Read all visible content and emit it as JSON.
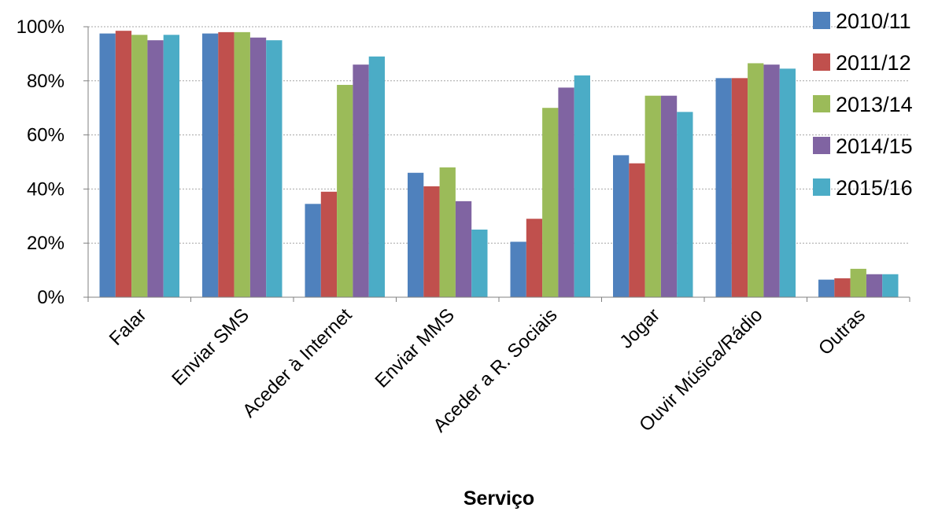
{
  "chart_data": {
    "type": "bar",
    "xlabel": "Serviço",
    "ylabel": "",
    "ylim": [
      0,
      100
    ],
    "yticks": [
      0,
      20,
      40,
      60,
      80,
      100
    ],
    "ytick_labels": [
      "0%",
      "20%",
      "40%",
      "60%",
      "80%",
      "100%"
    ],
    "grid": "horizontal, dotted",
    "legend_position": "right",
    "categories": [
      "Falar",
      "Enviar SMS",
      "Aceder à Internet",
      "Enviar MMS",
      "Aceder a R. Sociais",
      "Jogar",
      "Ouvir Música/Rádio",
      "Outras"
    ],
    "series": [
      {
        "name": "2010/11",
        "color": "#4F81BD",
        "values": [
          97.5,
          97.5,
          34.5,
          46,
          20.5,
          52.5,
          81,
          6.5
        ]
      },
      {
        "name": "2011/12",
        "color": "#C0504D",
        "values": [
          98.5,
          98,
          39,
          41,
          29,
          49.5,
          81,
          7
        ]
      },
      {
        "name": "2013/14",
        "color": "#9BBB59",
        "values": [
          97,
          98,
          78.5,
          48,
          70,
          74.5,
          86.5,
          10.5
        ]
      },
      {
        "name": "2014/15",
        "color": "#8064A2",
        "values": [
          95,
          96,
          86,
          35.5,
          77.5,
          74.5,
          86,
          8.5
        ]
      },
      {
        "name": "2015/16",
        "color": "#4BACC6",
        "values": [
          97,
          95,
          89,
          25,
          82,
          68.5,
          84.5,
          8.5
        ]
      }
    ]
  }
}
